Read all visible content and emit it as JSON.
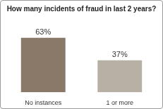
{
  "chart_data": {
    "type": "bar",
    "title": "How many incidents of fraud in last 2 years?",
    "categories": [
      "No instances",
      "1 or more"
    ],
    "values": [
      63,
      37
    ],
    "value_labels": [
      "63%",
      "37%"
    ],
    "colors": [
      "#8a7869",
      "#b7b0a5"
    ],
    "data_labels": true,
    "tick_labels": "x",
    "grid": false
  }
}
